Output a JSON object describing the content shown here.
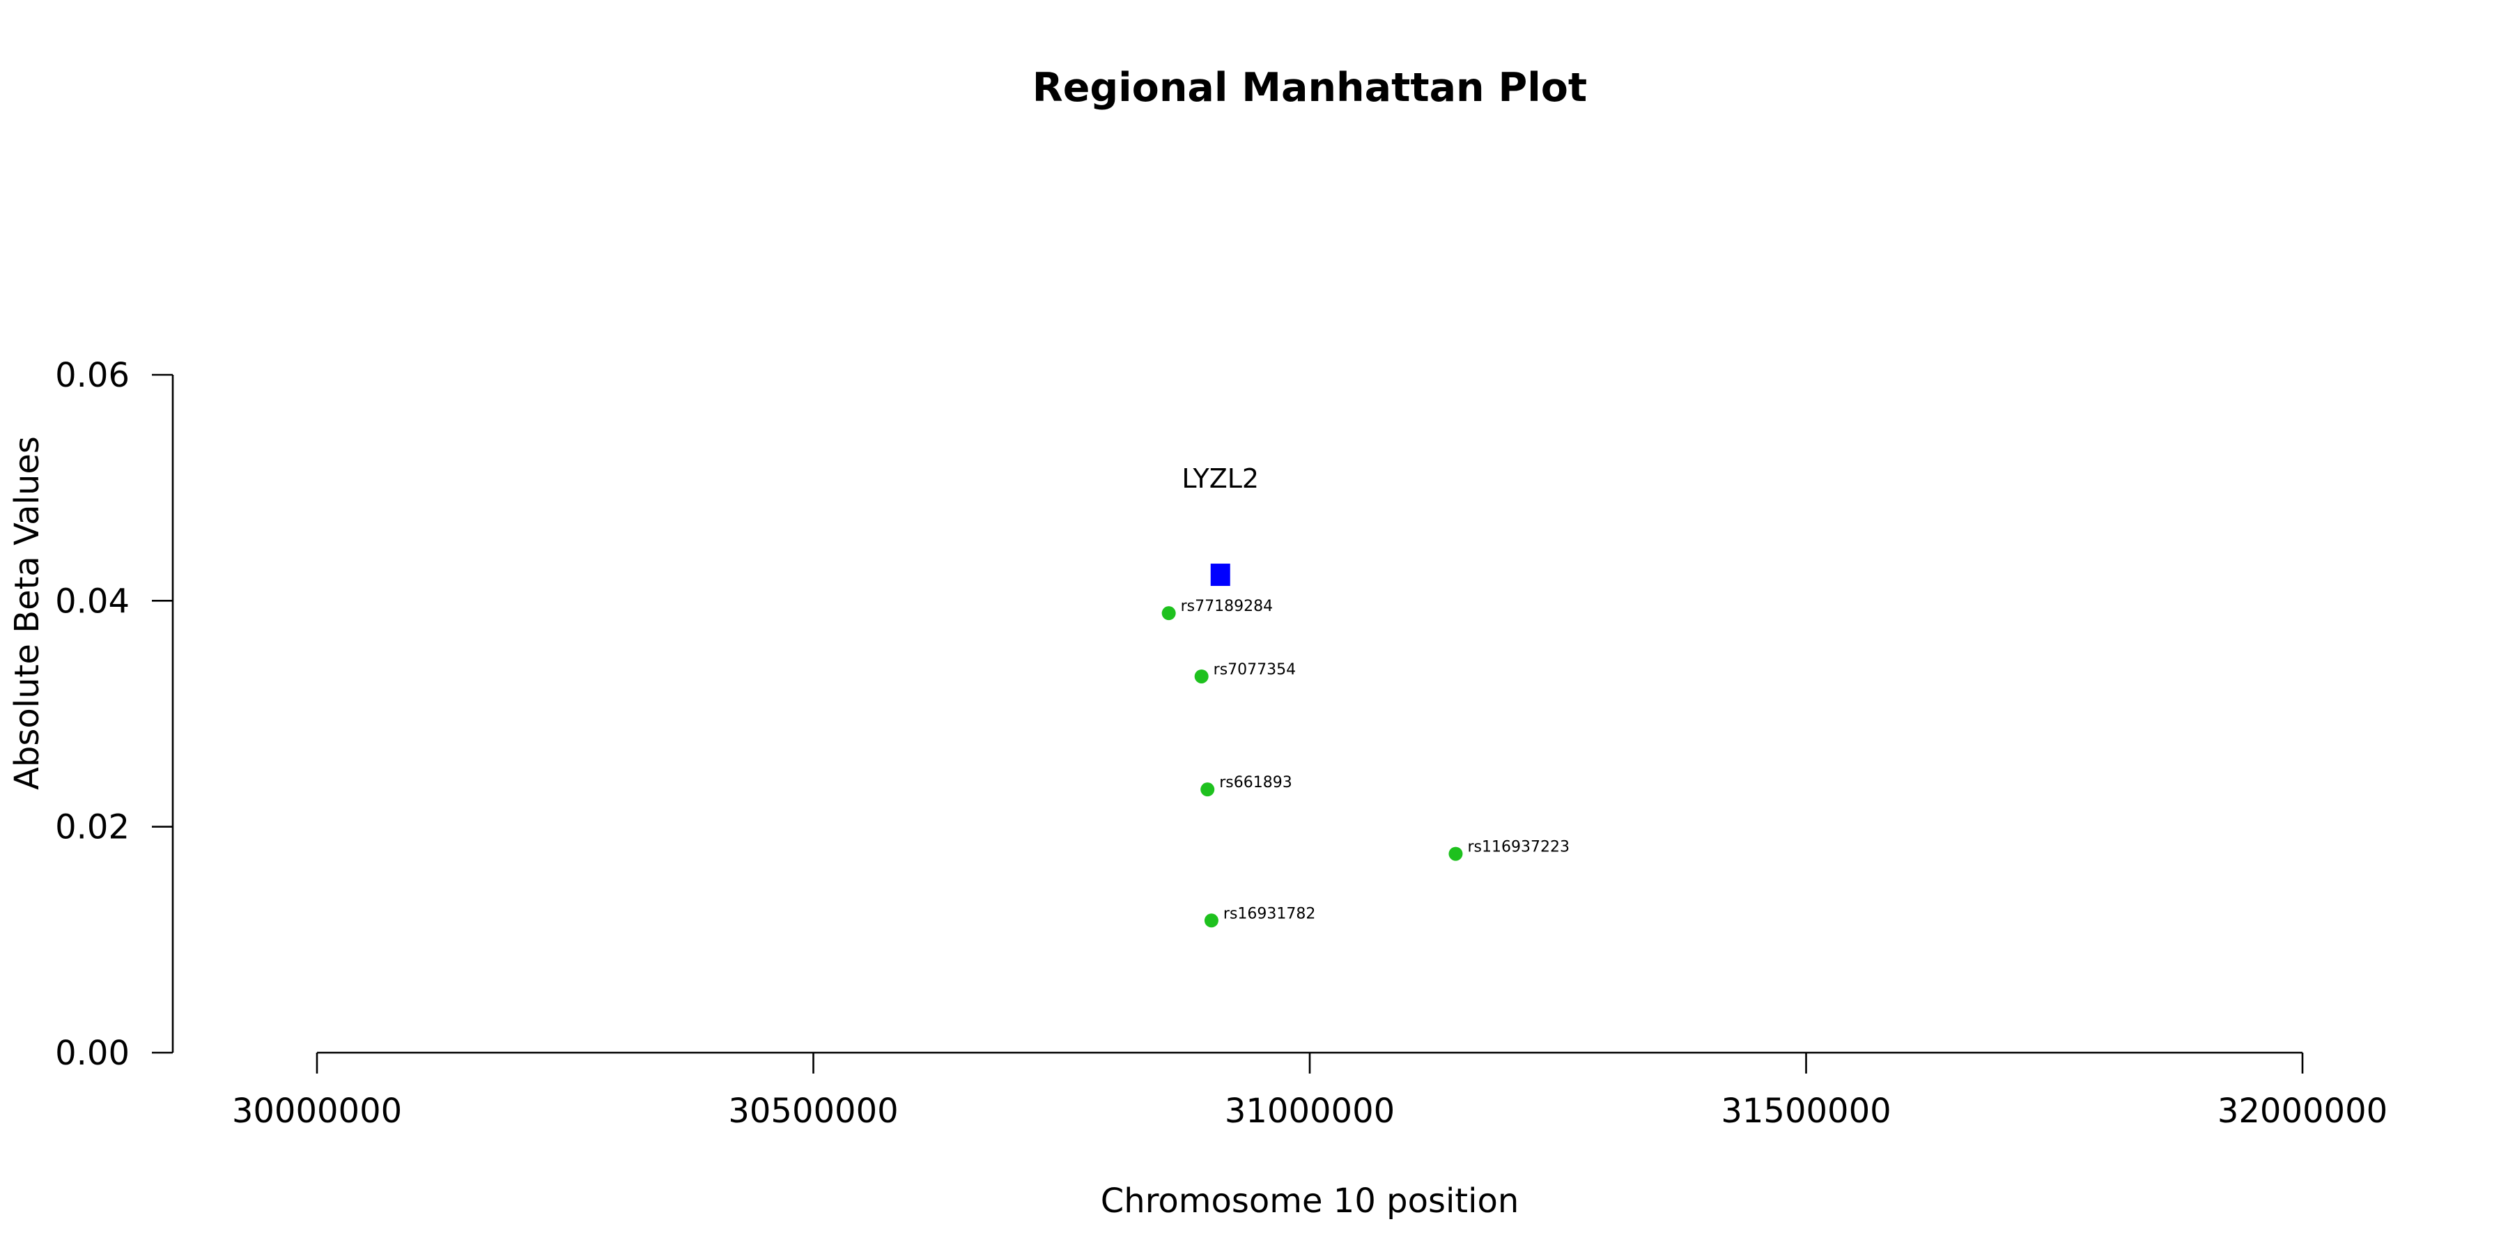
{
  "chart_data": {
    "type": "scatter",
    "title": "Regional Manhattan Plot",
    "xlabel": "Chromosome 10 position",
    "ylabel": "Absolute Beta Values",
    "xlim": [
      30000000,
      32000000
    ],
    "ylim": [
      0,
      0.06
    ],
    "x_ticks": [
      30000000,
      30500000,
      31000000,
      31500000,
      32000000
    ],
    "x_tick_labels": [
      "30000000",
      "30500000",
      "31000000",
      "31500000",
      "32000000"
    ],
    "y_ticks": [
      0,
      0.02,
      0.04,
      0.06
    ],
    "y_tick_labels": [
      "0.00",
      "0.02",
      "0.04",
      "0.06"
    ],
    "grid": false,
    "snp_color": "#1ec11e",
    "gene_color": "#0000ff",
    "snps": [
      {
        "id": "rs77189284",
        "x": 30858000,
        "y": 0.0389
      },
      {
        "id": "rs7077354",
        "x": 30891000,
        "y": 0.0333
      },
      {
        "id": "rs661893",
        "x": 30897000,
        "y": 0.0233
      },
      {
        "id": "rs116937223",
        "x": 31147000,
        "y": 0.0176
      },
      {
        "id": "rs16931782",
        "x": 30901000,
        "y": 0.0117
      }
    ],
    "genes": [
      {
        "name": "LYZL2",
        "x": 30910000,
        "y": 0.0423,
        "label_y": 0.0508
      }
    ]
  }
}
